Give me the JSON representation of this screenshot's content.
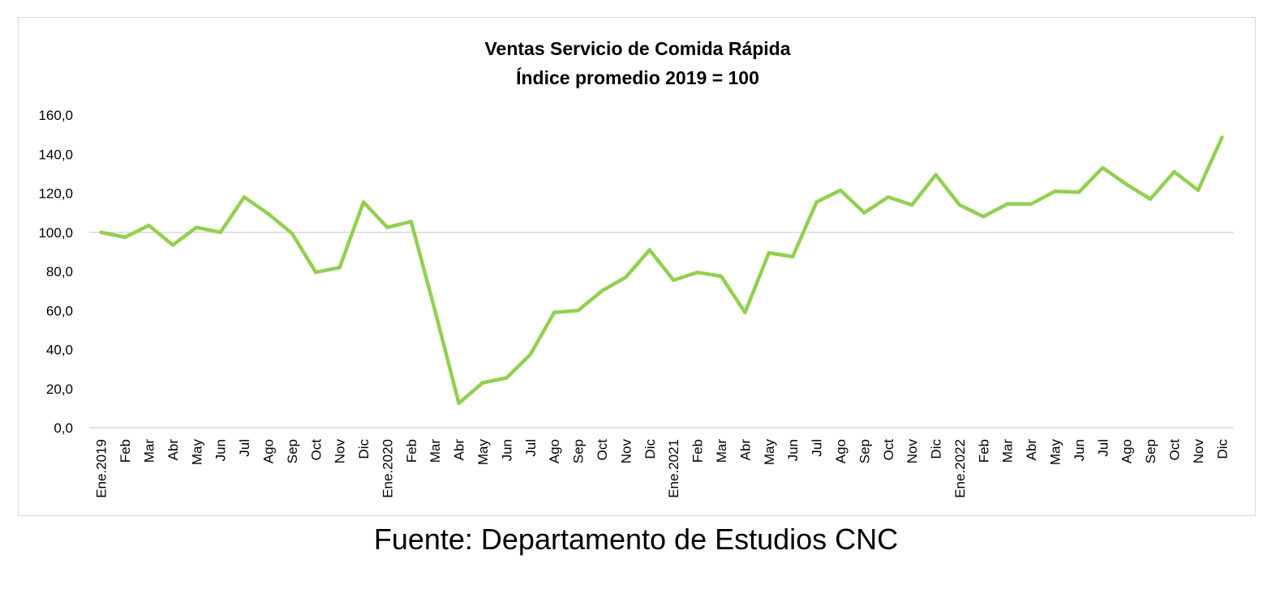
{
  "source": "Fuente: Departamento de Estudios CNC",
  "chart_data": {
    "type": "line",
    "title": "Ventas Servicio de Comida Rápida",
    "subtitle": "Índice promedio 2019 = 100",
    "xlabel": "",
    "ylabel": "",
    "ylim": [
      0,
      160
    ],
    "y_ticks": [
      "0,0",
      "20,0",
      "40,0",
      "60,0",
      "80,0",
      "100,0",
      "120,0",
      "140,0",
      "160,0"
    ],
    "reference_line": 100,
    "grid": false,
    "legend": "none",
    "line_color": "#92d050",
    "categories": [
      "Ene.2019",
      "Feb",
      "Mar",
      "Abr",
      "May",
      "Jun",
      "Jul",
      "Ago",
      "Sep",
      "Oct",
      "Nov",
      "Dic",
      "Ene.2020",
      "Feb",
      "Mar",
      "Abr",
      "May",
      "Jun",
      "Jul",
      "Ago",
      "Sep",
      "Oct",
      "Nov",
      "Dic",
      "Ene.2021",
      "Feb",
      "Mar",
      "Abr",
      "May",
      "Jun",
      "Jul",
      "Ago",
      "Sep",
      "Oct",
      "Nov",
      "Dic",
      "Ene.2022",
      "Feb",
      "Mar",
      "Abr",
      "May",
      "Jun",
      "Jul",
      "Ago",
      "Sep",
      "Oct",
      "Nov",
      "Dic"
    ],
    "series": [
      {
        "values": [
          100.0,
          97.5,
          103.5,
          93.5,
          102.5,
          100.0,
          118.0,
          109.5,
          99.5,
          79.5,
          82.0,
          115.5,
          102.5,
          105.5,
          60.0,
          12.5,
          23.0,
          25.5,
          37.5,
          59.0,
          60.0,
          70.0,
          77.0,
          91.0,
          75.5,
          79.5,
          77.5,
          59.0,
          89.5,
          87.5,
          115.5,
          121.5,
          110.0,
          118.0,
          114.0,
          129.5,
          114.0,
          108.0,
          114.5,
          114.5,
          121.0,
          120.5,
          133.0,
          124.5,
          117.0,
          131.0,
          121.5,
          148.5
        ]
      }
    ]
  }
}
